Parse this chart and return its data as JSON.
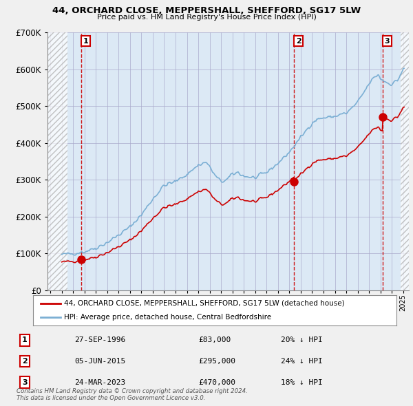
{
  "title": "44, ORCHARD CLOSE, MEPPERSHALL, SHEFFORD, SG17 5LW",
  "subtitle": "Price paid vs. HM Land Registry's House Price Index (HPI)",
  "ylim": [
    0,
    700000
  ],
  "xlim_start": 1993.75,
  "xlim_end": 2025.5,
  "hatch_end_year": 1995.5,
  "sale_dates": [
    1996.74,
    2015.42,
    2023.22
  ],
  "sale_prices": [
    83000,
    295000,
    470000
  ],
  "sale_labels": [
    "1",
    "2",
    "3"
  ],
  "sale_table": [
    [
      "1",
      "27-SEP-1996",
      "£83,000",
      "20% ↓ HPI"
    ],
    [
      "2",
      "05-JUN-2015",
      "£295,000",
      "24% ↓ HPI"
    ],
    [
      "3",
      "24-MAR-2023",
      "£470,000",
      "18% ↓ HPI"
    ]
  ],
  "legend_line1": "44, ORCHARD CLOSE, MEPPERSHALL, SHEFFORD, SG17 5LW (detached house)",
  "legend_line2": "HPI: Average price, detached house, Central Bedfordshire",
  "footer": "Contains HM Land Registry data © Crown copyright and database right 2024.\nThis data is licensed under the Open Government Licence v3.0.",
  "red_color": "#cc0000",
  "blue_color": "#7bafd4",
  "background_color": "#f0f0f0",
  "plot_bg_color": "#dce9f5",
  "hatch_color": "#c0c0c0"
}
